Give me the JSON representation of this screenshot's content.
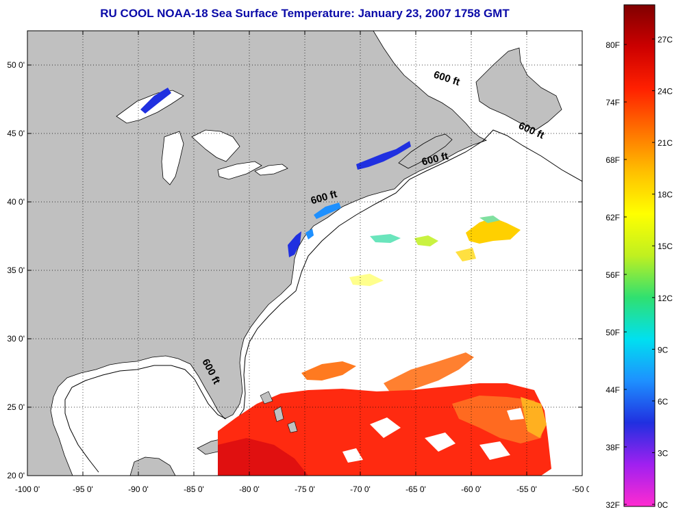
{
  "title": "RU COOL  NOAA-18  Sea Surface Temperature:  January 23, 2007 1758 GMT",
  "map": {
    "lon_range": [
      -100,
      -50
    ],
    "lat_range": [
      20,
      52.5
    ],
    "lon_ticks": [
      "-100 0'",
      "-95 0'",
      "-90 0'",
      "-85 0'",
      "-80 0'",
      "-75 0'",
      "-70 0'",
      "-65 0'",
      "-60 0'",
      "-55 0'",
      "-50 0'"
    ],
    "lat_ticks": [
      "20 0'",
      "25 0'",
      "30 0'",
      "35 0'",
      "40 0'",
      "45 0'",
      "50 0'"
    ],
    "land_color": "#c0c0c0",
    "contour_labels": [
      {
        "text": "600 ft",
        "lon": -62.3,
        "lat": 48.8,
        "angle": 18
      },
      {
        "text": "600 ft",
        "lon": -54.7,
        "lat": 45.0,
        "angle": 24
      },
      {
        "text": "600 ft",
        "lon": -63.2,
        "lat": 42.9,
        "angle": -14
      },
      {
        "text": "600 ft",
        "lon": -73.2,
        "lat": 40.1,
        "angle": -16
      },
      {
        "text": "600 ft",
        "lon": -83.7,
        "lat": 27.5,
        "angle": 62
      }
    ]
  },
  "colorbar": {
    "f_labels": [
      "32F",
      "38F",
      "44F",
      "50F",
      "56F",
      "62F",
      "68F",
      "74F",
      "80F"
    ],
    "c_labels": [
      "0C",
      "3C",
      "6C",
      "9C",
      "12C",
      "15C",
      "18C",
      "21C",
      "24C",
      "27C"
    ],
    "colors": [
      "#ff2bd0",
      "#a020f0",
      "#2030e0",
      "#1e90ff",
      "#00e0f0",
      "#30e070",
      "#c0f020",
      "#ffff00",
      "#ffc000",
      "#ff7000",
      "#ff2000",
      "#cc0000",
      "#800000"
    ]
  }
}
